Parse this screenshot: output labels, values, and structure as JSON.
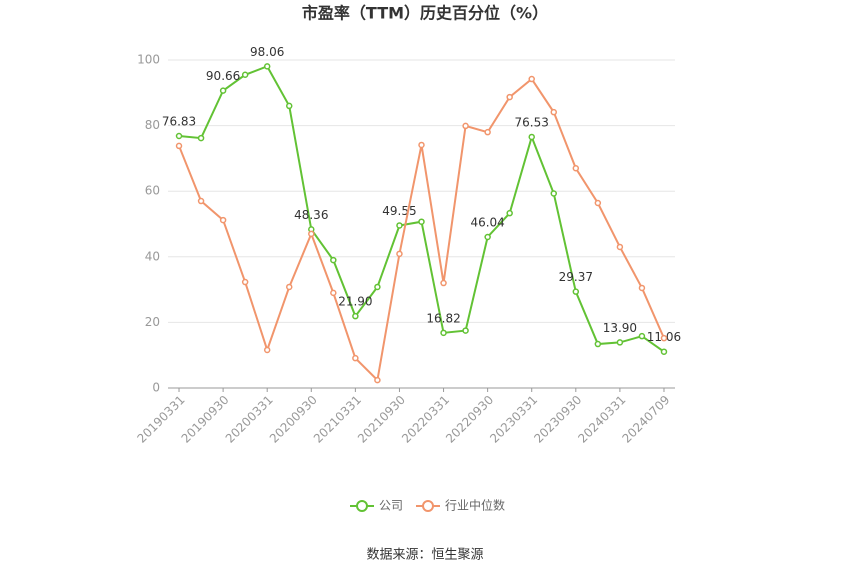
{
  "chart_data": {
    "type": "line",
    "title": "市盈率（TTM）历史百分位（%）",
    "source": "数据来源：恒生聚源",
    "categories": [
      "20190331",
      null,
      "20190930",
      null,
      "20200331",
      null,
      "20200930",
      null,
      "20210331",
      null,
      "20210930",
      null,
      "20220331",
      null,
      "20220930",
      null,
      "20230331",
      null,
      "20230930",
      null,
      "20240331",
      null,
      "20240709"
    ],
    "series": [
      {
        "name": "公司",
        "color": "#62c234",
        "values": [
          76.83,
          76.2,
          90.66,
          95.5,
          98.06,
          86.0,
          48.36,
          39.0,
          21.9,
          30.8,
          49.55,
          50.7,
          16.82,
          17.5,
          46.04,
          53.3,
          76.53,
          59.3,
          29.37,
          13.4,
          13.9,
          15.8,
          11.06
        ],
        "value_labels": [
          "76.83",
          null,
          "90.66",
          null,
          "98.06",
          null,
          "48.36",
          null,
          "21.90",
          null,
          "49.55",
          null,
          "16.82",
          null,
          "46.04",
          null,
          "76.53",
          null,
          "29.37",
          null,
          "13.90",
          null,
          "11.06"
        ]
      },
      {
        "name": "行业中位数",
        "color": "#f1956c",
        "values": [
          73.8,
          57.0,
          51.2,
          32.3,
          11.6,
          30.8,
          47.0,
          29.0,
          9.1,
          2.4,
          40.9,
          74.1,
          32.0,
          79.9,
          78.0,
          88.7,
          94.2,
          84.1,
          67.0,
          56.4,
          43.0,
          30.5,
          15.2
        ]
      }
    ],
    "ylim": [
      0,
      100
    ],
    "yticks": [
      0,
      20,
      40,
      60,
      80,
      100
    ],
    "grid": true
  }
}
